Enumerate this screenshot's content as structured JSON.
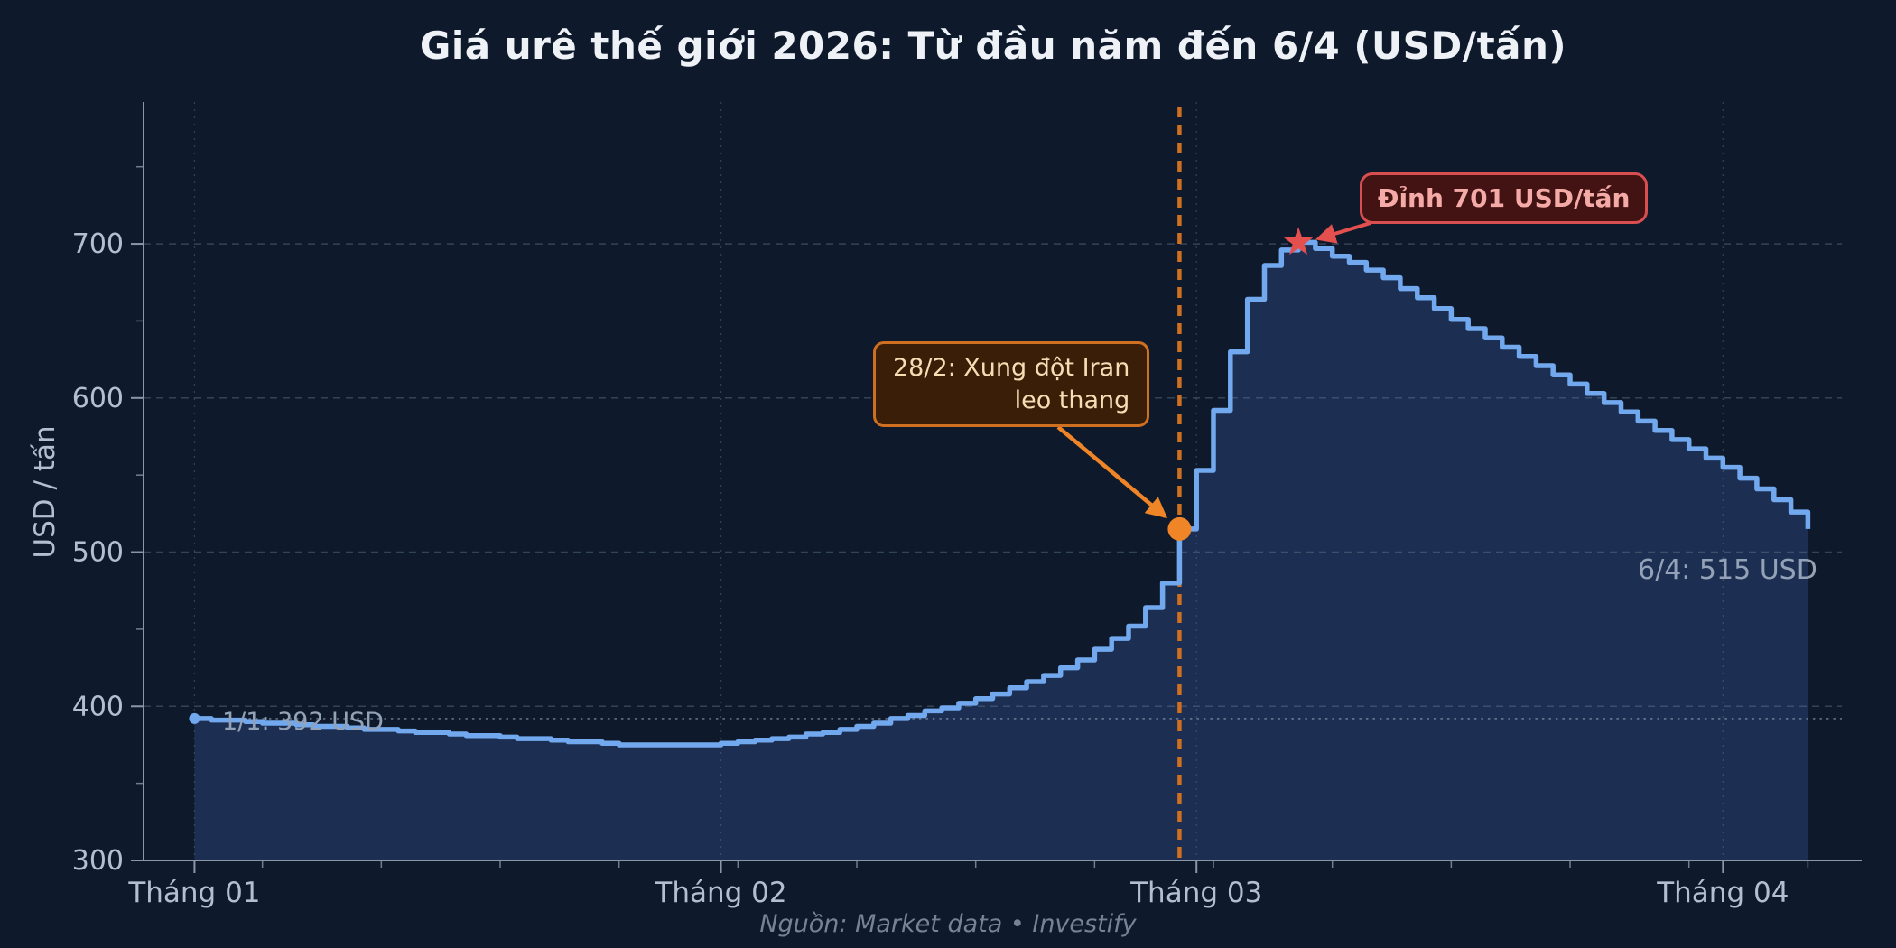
{
  "chart_data": {
    "type": "area",
    "title": "Giá urê thế giới 2026: Từ đầu năm đến 6/4 (USD/tấn)",
    "ylabel": "USD / tấn",
    "x_axis": {
      "tick_labels": [
        "Tháng 01",
        "Tháng 02",
        "Tháng 03",
        "Tháng 04"
      ],
      "tick_days": [
        0,
        31,
        59,
        90
      ],
      "minor_tick_days": [
        4,
        11,
        18,
        25,
        32,
        39,
        46,
        53,
        60,
        67,
        74,
        81,
        88,
        95
      ],
      "lim_days": [
        -3,
        97
      ]
    },
    "y_axis": {
      "tick_labels": [
        "300",
        "400",
        "500",
        "600",
        "700"
      ],
      "ticks": [
        300,
        400,
        500,
        600,
        700
      ],
      "minor_ticks": [
        350,
        450,
        550,
        650,
        750
      ],
      "grid_values": [
        400,
        500,
        600,
        700
      ],
      "lim": [
        300,
        792
      ]
    },
    "grid": "on",
    "series": [
      {
        "values": [
          392,
          391,
          391,
          390,
          389,
          389,
          388,
          387,
          387,
          386,
          385,
          385,
          384,
          383,
          383,
          382,
          381,
          381,
          380,
          379,
          379,
          378,
          377,
          377,
          376,
          375,
          375,
          375,
          375,
          375,
          375,
          376,
          377,
          378,
          379,
          380,
          382,
          383,
          385,
          387,
          389,
          392,
          394,
          397,
          399,
          402,
          405,
          408,
          412,
          416,
          420,
          425,
          430,
          437,
          444,
          452,
          464,
          480,
          515,
          553,
          592,
          630,
          664,
          686,
          696,
          701,
          697,
          692,
          688,
          683,
          678,
          671,
          665,
          658,
          651,
          645,
          639,
          633,
          627,
          621,
          615,
          609,
          603,
          597,
          591,
          585,
          579,
          573,
          567,
          561,
          555,
          548,
          541,
          534,
          526,
          515
        ]
      }
    ],
    "reference_line_value": 392,
    "event": {
      "day": 58,
      "value": 515
    },
    "peak": {
      "day": 65,
      "value": 701
    },
    "annotations": {
      "start_label": "1/1: 392 USD",
      "end_label": "6/4: 515 USD",
      "event_box": {
        "lines": [
          "28/2: Xung đột Iran",
          "leo thang"
        ]
      },
      "peak_box": "Đỉnh 701 USD/tấn",
      "source": "Nguồn: Market data  •  Investify"
    },
    "colors": {
      "background": "#0e1a2b",
      "line": "#72a9ee",
      "fill": "#1e3055",
      "grid": "#64778f",
      "axis": "#8b97a8",
      "tick_label": "#b3bfd1",
      "muted_label": "#93a2b6",
      "reference_dotted": "#93a3b8",
      "event_orange": "#ef8527",
      "event_line_orange": "#cf6f20",
      "event_box_bg": "#3a1e07",
      "event_box_text": "#f6ddb4",
      "peak_red": "#e4504e",
      "peak_box_bg": "#431212",
      "peak_box_border": "#d94f4f",
      "peak_box_text": "#f4aaa6",
      "title": "#eef2f7",
      "source": "#768396"
    }
  }
}
